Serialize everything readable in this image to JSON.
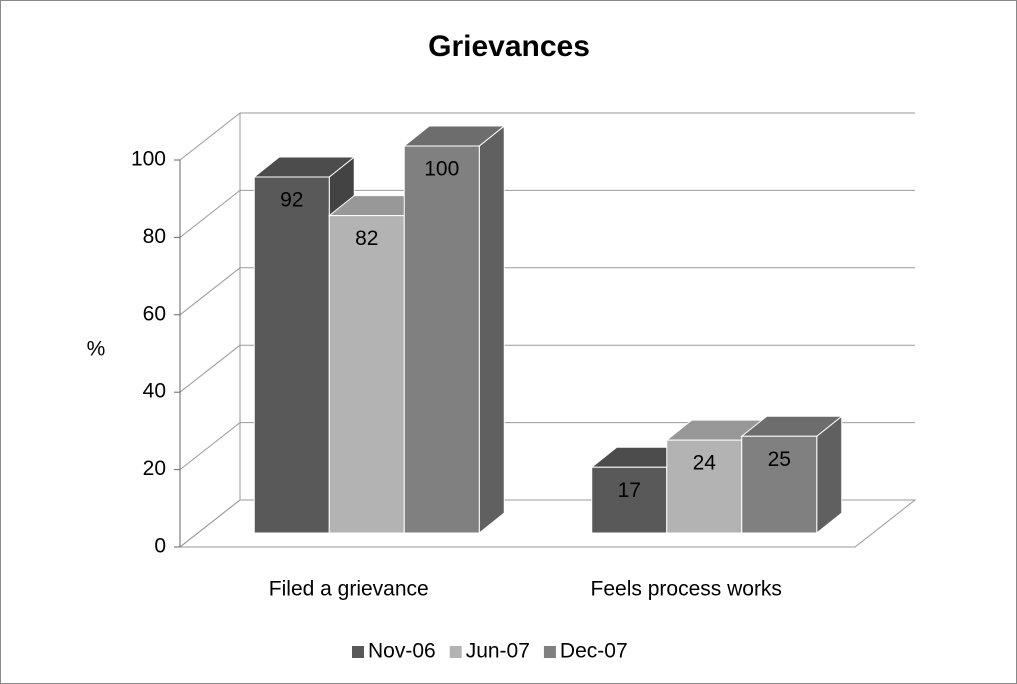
{
  "chart_data": {
    "type": "bar3d",
    "title": "Grievances",
    "y_label": "%",
    "categories": [
      "Filed a grievance",
      "Feels process works"
    ],
    "series": [
      {
        "name": "Nov-06",
        "color": "#595959",
        "values": [
          92,
          17
        ]
      },
      {
        "name": "Jun-07",
        "color": "#b3b3b3",
        "values": [
          82,
          24
        ]
      },
      {
        "name": "Dec-07",
        "color": "#808080",
        "values": [
          100,
          25
        ]
      }
    ],
    "ylim": [
      0,
      100
    ],
    "yticks": [
      0,
      20,
      40,
      60,
      80,
      100
    ],
    "grid": true,
    "legend": "bottom"
  }
}
